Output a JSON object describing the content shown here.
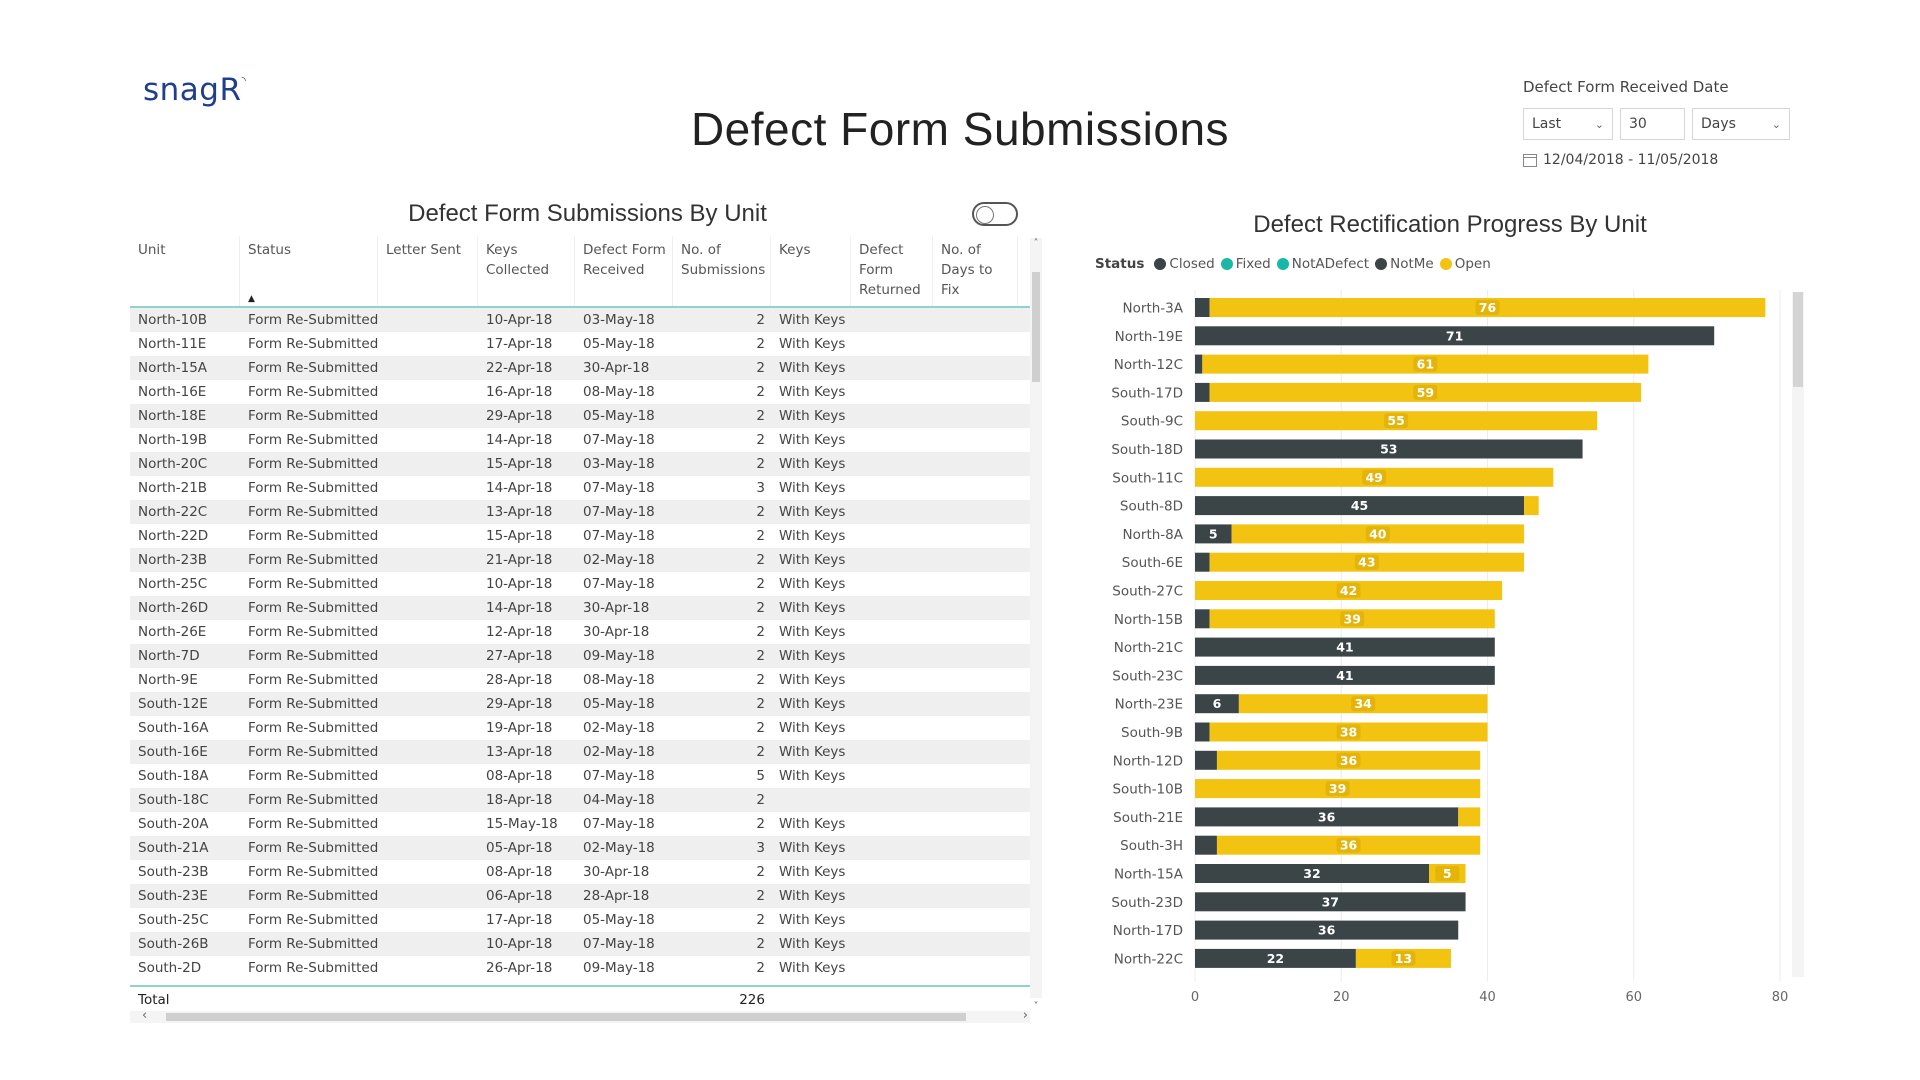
{
  "logo": "snagR",
  "title": "Defect Form Submissions",
  "filter": {
    "title": "Defect Form Received Date",
    "mode": "Last",
    "amount": "30",
    "unit": "Days",
    "range": "12/04/2018 - 11/05/2018"
  },
  "table": {
    "title": "Defect Form Submissions By Unit",
    "headers": [
      "Unit",
      "Status",
      "Letter Sent",
      "Keys Collected",
      "Defect Form Received",
      "No. of Submissions",
      "Keys",
      "Defect Form Returned",
      "No. of Days to Fix"
    ],
    "rows": [
      [
        "North-10B",
        "Form Re-Submitted",
        "",
        "10-Apr-18",
        "03-May-18",
        "2",
        "With Keys",
        "",
        ""
      ],
      [
        "North-11E",
        "Form Re-Submitted",
        "",
        "17-Apr-18",
        "05-May-18",
        "2",
        "With Keys",
        "",
        ""
      ],
      [
        "North-15A",
        "Form Re-Submitted",
        "",
        "22-Apr-18",
        "30-Apr-18",
        "2",
        "With Keys",
        "",
        ""
      ],
      [
        "North-16E",
        "Form Re-Submitted",
        "",
        "16-Apr-18",
        "08-May-18",
        "2",
        "With Keys",
        "",
        ""
      ],
      [
        "North-18E",
        "Form Re-Submitted",
        "",
        "29-Apr-18",
        "05-May-18",
        "2",
        "With Keys",
        "",
        ""
      ],
      [
        "North-19B",
        "Form Re-Submitted",
        "",
        "14-Apr-18",
        "07-May-18",
        "2",
        "With Keys",
        "",
        ""
      ],
      [
        "North-20C",
        "Form Re-Submitted",
        "",
        "15-Apr-18",
        "03-May-18",
        "2",
        "With Keys",
        "",
        ""
      ],
      [
        "North-21B",
        "Form Re-Submitted",
        "",
        "14-Apr-18",
        "07-May-18",
        "3",
        "With Keys",
        "",
        ""
      ],
      [
        "North-22C",
        "Form Re-Submitted",
        "",
        "13-Apr-18",
        "07-May-18",
        "2",
        "With Keys",
        "",
        ""
      ],
      [
        "North-22D",
        "Form Re-Submitted",
        "",
        "15-Apr-18",
        "07-May-18",
        "2",
        "With Keys",
        "",
        ""
      ],
      [
        "North-23B",
        "Form Re-Submitted",
        "",
        "21-Apr-18",
        "02-May-18",
        "2",
        "With Keys",
        "",
        ""
      ],
      [
        "North-25C",
        "Form Re-Submitted",
        "",
        "10-Apr-18",
        "07-May-18",
        "2",
        "With Keys",
        "",
        ""
      ],
      [
        "North-26D",
        "Form Re-Submitted",
        "",
        "14-Apr-18",
        "30-Apr-18",
        "2",
        "With Keys",
        "",
        ""
      ],
      [
        "North-26E",
        "Form Re-Submitted",
        "",
        "12-Apr-18",
        "30-Apr-18",
        "2",
        "With Keys",
        "",
        ""
      ],
      [
        "North-7D",
        "Form Re-Submitted",
        "",
        "27-Apr-18",
        "09-May-18",
        "2",
        "With Keys",
        "",
        ""
      ],
      [
        "North-9E",
        "Form Re-Submitted",
        "",
        "28-Apr-18",
        "08-May-18",
        "2",
        "With Keys",
        "",
        ""
      ],
      [
        "South-12E",
        "Form Re-Submitted",
        "",
        "29-Apr-18",
        "05-May-18",
        "2",
        "With Keys",
        "",
        ""
      ],
      [
        "South-16A",
        "Form Re-Submitted",
        "",
        "19-Apr-18",
        "02-May-18",
        "2",
        "With Keys",
        "",
        ""
      ],
      [
        "South-16E",
        "Form Re-Submitted",
        "",
        "13-Apr-18",
        "02-May-18",
        "2",
        "With Keys",
        "",
        ""
      ],
      [
        "South-18A",
        "Form Re-Submitted",
        "",
        "08-Apr-18",
        "07-May-18",
        "5",
        "With Keys",
        "",
        ""
      ],
      [
        "South-18C",
        "Form Re-Submitted",
        "",
        "18-Apr-18",
        "04-May-18",
        "2",
        "",
        "",
        ""
      ],
      [
        "South-20A",
        "Form Re-Submitted",
        "",
        "15-May-18",
        "07-May-18",
        "2",
        "With Keys",
        "",
        ""
      ],
      [
        "South-21A",
        "Form Re-Submitted",
        "",
        "05-Apr-18",
        "02-May-18",
        "3",
        "With Keys",
        "",
        ""
      ],
      [
        "South-23B",
        "Form Re-Submitted",
        "",
        "08-Apr-18",
        "30-Apr-18",
        "2",
        "With Keys",
        "",
        ""
      ],
      [
        "South-23E",
        "Form Re-Submitted",
        "",
        "06-Apr-18",
        "28-Apr-18",
        "2",
        "With Keys",
        "",
        ""
      ],
      [
        "South-25C",
        "Form Re-Submitted",
        "",
        "17-Apr-18",
        "05-May-18",
        "2",
        "With Keys",
        "",
        ""
      ],
      [
        "South-26B",
        "Form Re-Submitted",
        "",
        "10-Apr-18",
        "07-May-18",
        "2",
        "With Keys",
        "",
        ""
      ],
      [
        "South-2D",
        "Form Re-Submitted",
        "",
        "26-Apr-18",
        "09-May-18",
        "2",
        "With Keys",
        "",
        ""
      ]
    ],
    "total_label": "Total",
    "total_value": "226"
  },
  "chart": {
    "title": "Defect Rectification Progress By Unit",
    "legend_label": "Status"
  },
  "chart_data": {
    "type": "bar",
    "orientation": "horizontal",
    "stacked": true,
    "categories": [
      "North-3A",
      "North-19E",
      "North-12C",
      "South-17D",
      "South-9C",
      "South-18D",
      "South-11C",
      "South-8D",
      "North-8A",
      "South-6E",
      "South-27C",
      "North-15B",
      "North-21C",
      "South-23C",
      "North-23E",
      "South-9B",
      "North-12D",
      "South-10B",
      "South-21E",
      "South-3H",
      "North-15A",
      "South-23D",
      "North-17D",
      "North-22C"
    ],
    "series": [
      {
        "name": "Closed",
        "color": "#3b4548",
        "values": [
          2,
          71,
          1,
          2,
          0,
          53,
          0,
          45,
          5,
          2,
          0,
          2,
          41,
          41,
          6,
          2,
          3,
          0,
          36,
          3,
          32,
          37,
          36,
          22
        ]
      },
      {
        "name": "Fixed",
        "color": "#1bb8a4",
        "values": [
          0,
          0,
          0,
          0,
          0,
          0,
          0,
          0,
          0,
          0,
          0,
          0,
          0,
          0,
          0,
          0,
          0,
          0,
          0,
          0,
          0,
          0,
          0,
          0
        ]
      },
      {
        "name": "NotADefect",
        "color": "#16b8a8",
        "values": [
          0,
          0,
          0,
          0,
          0,
          0,
          0,
          0,
          0,
          0,
          0,
          0,
          0,
          0,
          0,
          0,
          0,
          0,
          0,
          0,
          0,
          0,
          0,
          0
        ]
      },
      {
        "name": "NotMe",
        "color": "#3b4548",
        "values": [
          0,
          0,
          0,
          0,
          0,
          0,
          0,
          0,
          0,
          0,
          0,
          0,
          0,
          0,
          0,
          0,
          0,
          0,
          0,
          0,
          0,
          0,
          0,
          0
        ]
      },
      {
        "name": "Open",
        "color": "#f2c311",
        "values": [
          76,
          0,
          61,
          59,
          55,
          0,
          49,
          2,
          40,
          43,
          42,
          39,
          0,
          0,
          34,
          38,
          36,
          39,
          3,
          36,
          5,
          0,
          0,
          13
        ]
      }
    ],
    "data_labels": true,
    "xlim": [
      0,
      80
    ],
    "xticks": [
      0,
      20,
      40,
      60,
      80
    ],
    "legend_position": "top-left"
  }
}
